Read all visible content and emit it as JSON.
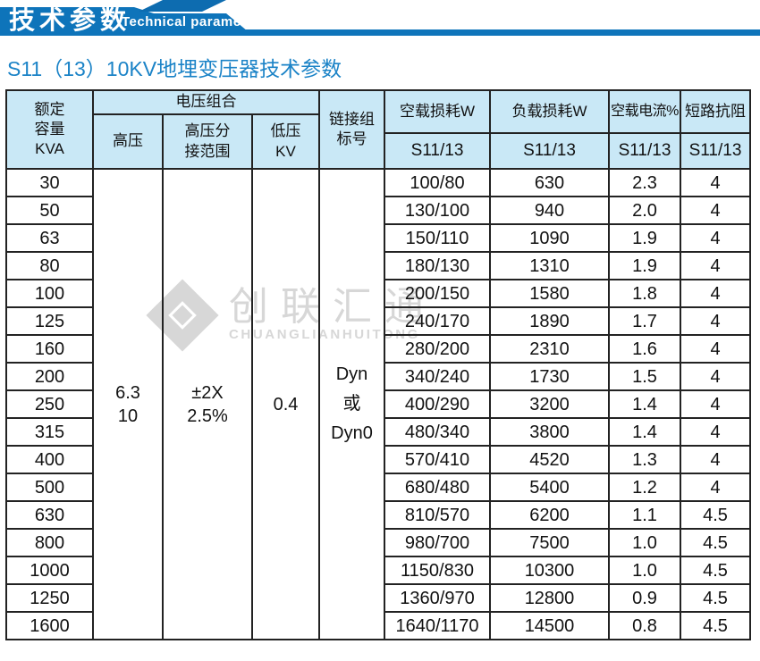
{
  "colors": {
    "banner_blue": "#0e74ba",
    "band_blue": "#0d6cb0",
    "table_header_bg": "#c9e8f6",
    "title_blue": "#1b83c7",
    "border": "#222222",
    "watermark_gray": "#d7d7d7"
  },
  "banner": {
    "title": "技术参数",
    "subtitle": "Technical parameter"
  },
  "page_title": "S11（13）10KV地埋变压器技术参数",
  "watermark": {
    "cn": "创联汇通",
    "en": "CHUANGLIANHUITONG"
  },
  "table": {
    "headers": {
      "capacity": "额定\n容量\nKVA",
      "voltage_group": "电压组合",
      "hv": "高压",
      "hv_tap": "高压分\n接范围",
      "lv": "低压\nKV",
      "vector_group": "链接组\n标号",
      "noload_loss": "空载损耗W",
      "load_loss": "负载损耗W",
      "noload_current": "空载电流%",
      "impedance": "短路抗阻",
      "model_noload": "S11/13",
      "model_load": "S11/13",
      "model_current": "S11/13",
      "model_impedance": "S11/13"
    },
    "merged": {
      "hv": "6.3\n10",
      "hv_tap": "±2X\n2.5%",
      "lv": "0.4",
      "vector_group": "Dyn\n或\nDyn0"
    },
    "rows": [
      {
        "capacity": "30",
        "noload_loss": "100/80",
        "load_loss": "630",
        "noload_current": "2.3",
        "impedance": "4"
      },
      {
        "capacity": "50",
        "noload_loss": "130/100",
        "load_loss": "940",
        "noload_current": "2.0",
        "impedance": "4"
      },
      {
        "capacity": "63",
        "noload_loss": "150/110",
        "load_loss": "1090",
        "noload_current": "1.9",
        "impedance": "4"
      },
      {
        "capacity": "80",
        "noload_loss": "180/130",
        "load_loss": "1310",
        "noload_current": "1.9",
        "impedance": "4"
      },
      {
        "capacity": "100",
        "noload_loss": "200/150",
        "load_loss": "1580",
        "noload_current": "1.8",
        "impedance": "4"
      },
      {
        "capacity": "125",
        "noload_loss": "240/170",
        "load_loss": "1890",
        "noload_current": "1.7",
        "impedance": "4"
      },
      {
        "capacity": "160",
        "noload_loss": "280/200",
        "load_loss": "2310",
        "noload_current": "1.6",
        "impedance": "4"
      },
      {
        "capacity": "200",
        "noload_loss": "340/240",
        "load_loss": "1730",
        "noload_current": "1.5",
        "impedance": "4"
      },
      {
        "capacity": "250",
        "noload_loss": "400/290",
        "load_loss": "3200",
        "noload_current": "1.4",
        "impedance": "4"
      },
      {
        "capacity": "315",
        "noload_loss": "480/340",
        "load_loss": "3800",
        "noload_current": "1.4",
        "impedance": "4"
      },
      {
        "capacity": "400",
        "noload_loss": "570/410",
        "load_loss": "4520",
        "noload_current": "1.3",
        "impedance": "4"
      },
      {
        "capacity": "500",
        "noload_loss": "680/480",
        "load_loss": "5400",
        "noload_current": "1.2",
        "impedance": "4"
      },
      {
        "capacity": "630",
        "noload_loss": "810/570",
        "load_loss": "6200",
        "noload_current": "1.1",
        "impedance": "4.5"
      },
      {
        "capacity": "800",
        "noload_loss": "980/700",
        "load_loss": "7500",
        "noload_current": "1.0",
        "impedance": "4.5"
      },
      {
        "capacity": "1000",
        "noload_loss": "1150/830",
        "load_loss": "10300",
        "noload_current": "1.0",
        "impedance": "4.5"
      },
      {
        "capacity": "1250",
        "noload_loss": "1360/970",
        "load_loss": "12800",
        "noload_current": "0.9",
        "impedance": "4.5"
      },
      {
        "capacity": "1600",
        "noload_loss": "1640/1170",
        "load_loss": "14500",
        "noload_current": "0.8",
        "impedance": "4.5"
      }
    ]
  },
  "chart_data": {
    "type": "table",
    "title": "S11（13）10KV地埋变压器技术参数",
    "columns": [
      "额定容量KVA",
      "高压",
      "高压分接范围",
      "低压KV",
      "链接组标号",
      "空载损耗W S11/13",
      "负载损耗W S11/13",
      "空载电流% S11/13",
      "短路抗阻 S11/13"
    ],
    "shared_values": {
      "高压": "6.3/10",
      "高压分接范围": "±2X2.5%",
      "低压KV": "0.4",
      "链接组标号": "Dyn 或 Dyn0"
    },
    "rows": [
      [
        30,
        "100/80",
        630,
        2.3,
        4
      ],
      [
        50,
        "130/100",
        940,
        2.0,
        4
      ],
      [
        63,
        "150/110",
        1090,
        1.9,
        4
      ],
      [
        80,
        "180/130",
        1310,
        1.9,
        4
      ],
      [
        100,
        "200/150",
        1580,
        1.8,
        4
      ],
      [
        125,
        "240/170",
        1890,
        1.7,
        4
      ],
      [
        160,
        "280/200",
        2310,
        1.6,
        4
      ],
      [
        200,
        "340/240",
        1730,
        1.5,
        4
      ],
      [
        250,
        "400/290",
        3200,
        1.4,
        4
      ],
      [
        315,
        "480/340",
        3800,
        1.4,
        4
      ],
      [
        400,
        "570/410",
        4520,
        1.3,
        4
      ],
      [
        500,
        "680/480",
        5400,
        1.2,
        4
      ],
      [
        630,
        "810/570",
        6200,
        1.1,
        4.5
      ],
      [
        800,
        "980/700",
        7500,
        1.0,
        4.5
      ],
      [
        1000,
        "1150/830",
        10300,
        1.0,
        4.5
      ],
      [
        1250,
        "1360/970",
        12800,
        0.9,
        4.5
      ],
      [
        1600,
        "1640/1170",
        14500,
        0.8,
        4.5
      ]
    ]
  }
}
